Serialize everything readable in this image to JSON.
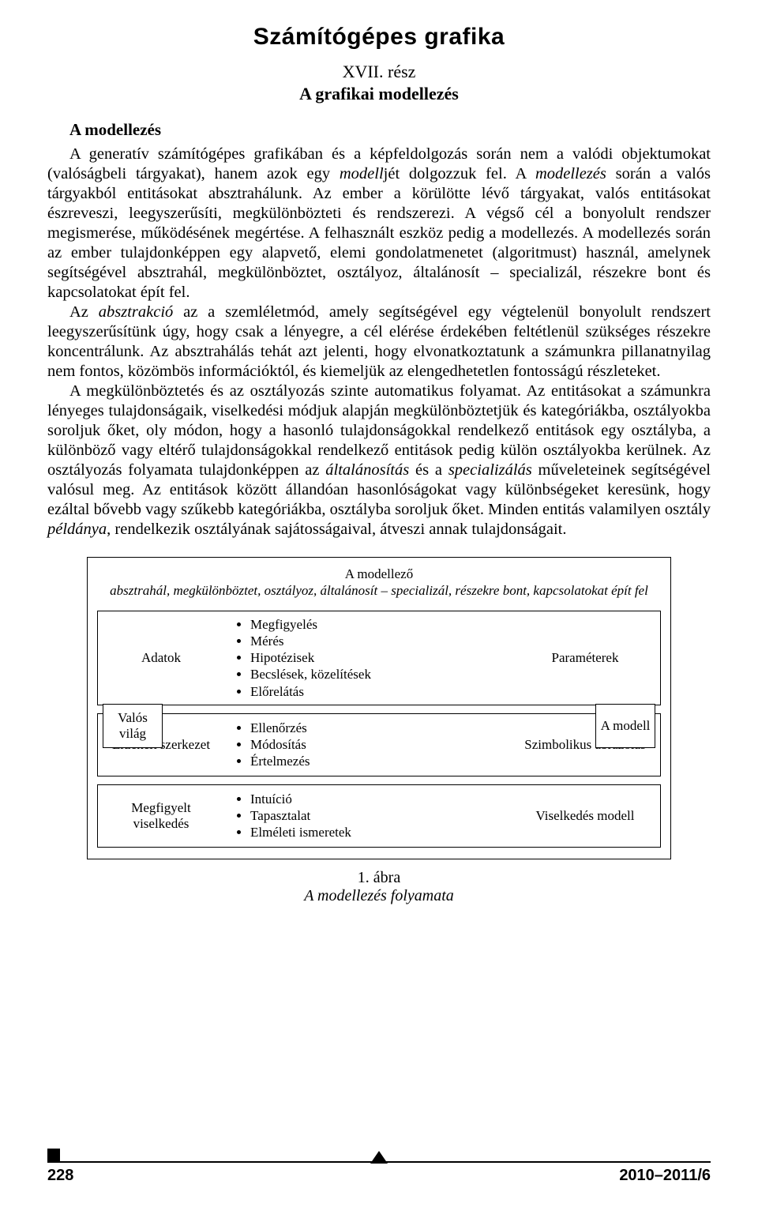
{
  "header": {
    "main_title": "Számítógépes grafika",
    "part_label": "XVII. rész",
    "subtitle": "A grafikai modellezés"
  },
  "section": {
    "heading": "A modellezés",
    "p1": "A generatív számítógépes grafikában és a képfeldolgozás során nem a valódi objektumokat (valóságbeli tárgyakat), hanem azok egy <i>modell</i>jét dolgozzuk fel. A <i>modellezés</i> során a valós tárgyakból entitásokat absztrahálunk. Az ember a körülötte lévő tárgyakat, valós entitásokat észreveszi, leegyszerűsíti, megkülönbözteti és rendszerezi. A végső cél a bonyolult rendszer megismerése, működésének megértése. A felhasznált eszköz pedig a modellezés. A modellezés során az ember tulajdonképpen egy alapvető, elemi gondolatmenetet (algoritmust) használ, amelynek segítségével absztrahál, megkülönböztet, osztályoz, általánosít – specializál, részekre bont és kapcsolatokat épít fel.",
    "p2": "Az <i>absztrakció</i> az a szemléletmód, amely segítségével egy végtelenül bonyolult rendszert leegyszerűsítünk úgy, hogy csak a lényegre, a cél elérése érdekében feltétlenül szükséges részekre koncentrálunk. Az absztrahálás tehát azt jelenti, hogy elvonatkoztatunk a számunkra pillanatnyilag nem fontos, közömbös információktól, és kiemeljük az elengedhetetlen fontosságú részleteket.",
    "p3": "A megkülönböztetés és az osztályozás szinte automatikus folyamat. Az entitásokat a számunkra lényeges tulajdonságaik, viselkedési módjuk alapján megkülönböztetjük és kategóriákba, osztályokba soroljuk őket, oly módon, hogy a hasonló tulajdonságokkal rendelkező entitások egy osztályba, a különböző vagy eltérő tulajdonságokkal rendelkező entitások pedig külön osztályokba kerülnek. Az osztályozás folyamata tulajdonképpen az <i>általánosítás</i> és a <i>specializálás</i> műveleteinek segítségével valósul meg. Az entitások között állandóan hasonlóságokat vagy különbségeket keresünk, hogy ezáltal bővebb vagy szűkebb kategóriákba, osztályba soroljuk őket. Minden entitás valamilyen osztály <i>példánya</i>, rendelkezik osztályának sajátosságaival, átveszi annak tulajdonságait."
  },
  "diagram": {
    "title_line1": "A modellező",
    "title_line2": "absztrahál, megkülönböztet, osztályoz, általánosít – specializál, részekre bont, kapcsolatokat épít fel",
    "left_side_box": "Valós világ",
    "right_side_box": "A modell",
    "rows": [
      {
        "left": "Adatok",
        "mid": [
          "Megfigyelés",
          "Mérés",
          "Hipotézisek",
          "Becslések, közelítések",
          "Előrelátás"
        ],
        "right": "Paraméterek"
      },
      {
        "left": "Érzékelt szerkezet",
        "mid": [
          "Ellenőrzés",
          "Módosítás",
          "Értelmezés"
        ],
        "right": "Szimbolikus ábrázolás"
      },
      {
        "left": "Megfigyelt viselkedés",
        "mid": [
          "Intuíció",
          "Tapasztalat",
          "Elméleti ismeretek"
        ],
        "right": "Viselkedés modell"
      }
    ],
    "caption_num": "1. ábra",
    "caption_text": "A modellezés folyamata",
    "box_border_color": "#000000",
    "background_color": "#ffffff",
    "font_family": "Times New Roman",
    "font_size_pt": 12
  },
  "footer": {
    "page": "228",
    "issue": "2010–2011/6"
  },
  "colors": {
    "text": "#000000",
    "bg": "#ffffff"
  }
}
